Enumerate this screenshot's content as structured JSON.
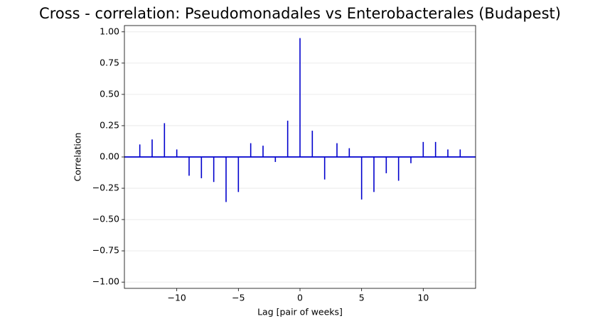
{
  "chart_data": {
    "type": "stem",
    "title": "Cross - correlation: Pseudomonadales vs Enterobacterales (Budapest)",
    "x_label": "Lag [pair of weeks]",
    "y_label": "Correlation",
    "x": [
      -13,
      -12,
      -11,
      -10,
      -9,
      -8,
      -7,
      -6,
      -5,
      -4,
      -3,
      -2,
      -1,
      0,
      1,
      2,
      3,
      4,
      5,
      6,
      7,
      8,
      9,
      10,
      11,
      12,
      13
    ],
    "values": [
      0.1,
      0.14,
      0.27,
      0.06,
      -0.15,
      -0.17,
      -0.2,
      -0.36,
      -0.28,
      0.11,
      0.09,
      -0.04,
      0.29,
      0.95,
      0.21,
      -0.18,
      0.11,
      0.07,
      -0.34,
      -0.28,
      -0.13,
      -0.19,
      -0.05,
      0.12,
      0.12,
      0.06,
      0.06
    ],
    "color": "#0000cd",
    "xlim": [
      -14.25,
      14.25
    ],
    "ylim": [
      -1.05,
      1.05
    ],
    "xticks": [
      {
        "value": -10,
        "label": "−10"
      },
      {
        "value": -5,
        "label": "−5"
      },
      0,
      5,
      10
    ],
    "yticks": [
      {
        "value": -1,
        "label": "−1.00"
      },
      {
        "value": -0.75,
        "label": "−0.75"
      },
      {
        "value": -0.5,
        "label": "−0.50"
      },
      {
        "value": -0.25,
        "label": "−0.25"
      },
      {
        "value": 0,
        "label": "0.00"
      },
      {
        "value": 0.25,
        "label": "0.25"
      },
      {
        "value": 0.5,
        "label": "0.50"
      },
      {
        "value": 0.75,
        "label": "0.75"
      },
      {
        "value": 1,
        "label": "1.00"
      }
    ],
    "grid": true
  }
}
